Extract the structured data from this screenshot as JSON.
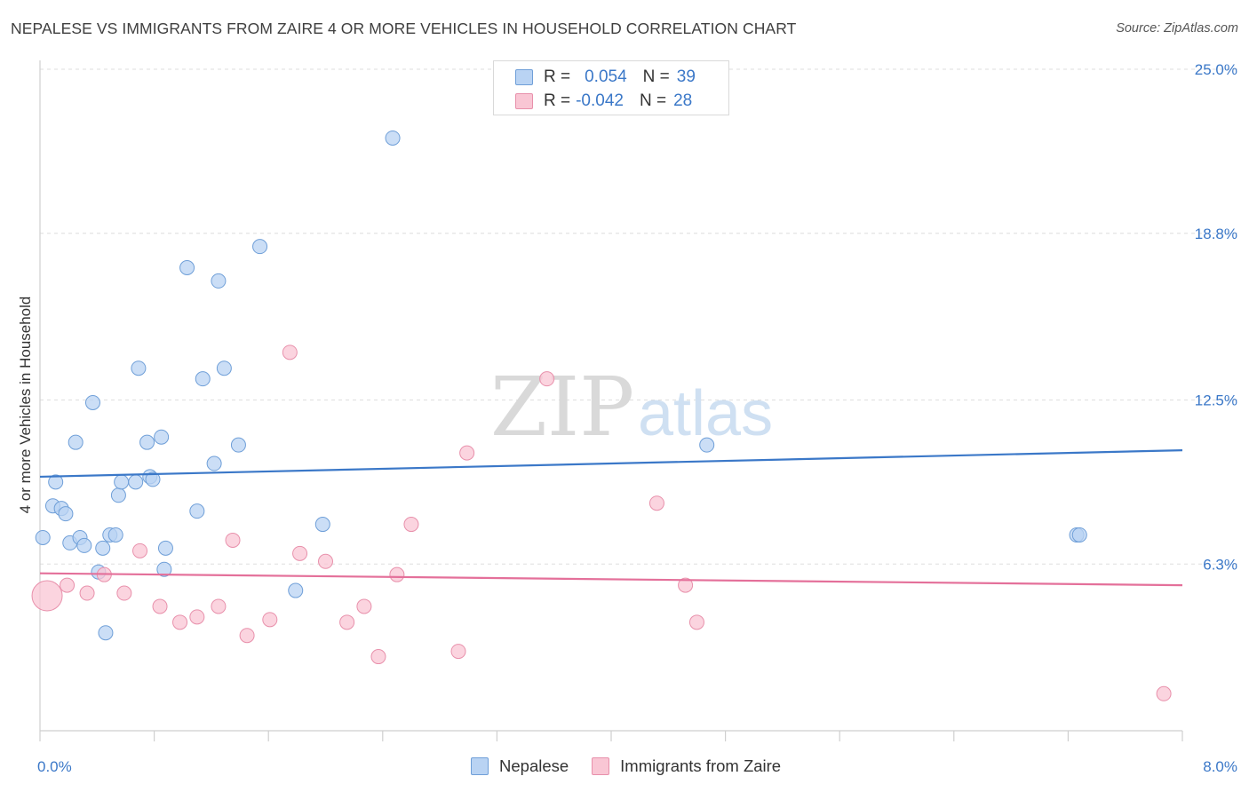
{
  "header": {
    "title": "NEPALESE VS IMMIGRANTS FROM ZAIRE 4 OR MORE VEHICLES IN HOUSEHOLD CORRELATION CHART",
    "source": "Source: ZipAtlas.com"
  },
  "watermark": {
    "zip": "ZIP",
    "atlas": "atlas"
  },
  "legend": {
    "rows": [
      {
        "r_label": "R =",
        "r_value": "0.054",
        "n_label": "N =",
        "n_value": "39",
        "fill": "#b9d3f3",
        "stroke": "#6f9fd8"
      },
      {
        "r_label": "R =",
        "r_value": "-0.042",
        "n_label": "N =",
        "n_value": "28",
        "fill": "#f9c6d4",
        "stroke": "#e890ab"
      }
    ]
  },
  "bottom_legend": [
    {
      "label": "Nepalese",
      "fill": "#b9d3f3",
      "stroke": "#6f9fd8"
    },
    {
      "label": "Immigrants from Zaire",
      "fill": "#f9c6d4",
      "stroke": "#e890ab"
    }
  ],
  "chart_data": {
    "type": "scatter",
    "title": "NEPALESE VS IMMIGRANTS FROM ZAIRE 4 OR MORE VEHICLES IN HOUSEHOLD CORRELATION CHART",
    "xlabel": "",
    "ylabel": "4 or more Vehicles in Household",
    "xlim": [
      0.0,
      8.0
    ],
    "ylim": [
      0.0,
      25.0
    ],
    "x_tick_labels": [
      {
        "value": 0.0,
        "label": "0.0%"
      },
      {
        "value": 8.0,
        "label": "8.0%"
      }
    ],
    "y_tick_labels": [
      {
        "value": 6.3,
        "label": "6.3%"
      },
      {
        "value": 12.5,
        "label": "12.5%"
      },
      {
        "value": 18.8,
        "label": "18.8%"
      },
      {
        "value": 25.0,
        "label": "25.0%"
      }
    ],
    "grid": true,
    "legend_position": "top-center",
    "series": [
      {
        "name": "Nepalese",
        "color": "#3b78c8",
        "fill": "#b9d3f3",
        "stroke": "#6f9fd8",
        "trend": {
          "x": [
            0.0,
            8.0
          ],
          "y": [
            9.6,
            10.6
          ]
        },
        "points": [
          {
            "x": 0.02,
            "y": 7.3
          },
          {
            "x": 0.09,
            "y": 8.5
          },
          {
            "x": 0.11,
            "y": 9.4
          },
          {
            "x": 0.15,
            "y": 8.4
          },
          {
            "x": 0.18,
            "y": 8.2
          },
          {
            "x": 0.21,
            "y": 7.1
          },
          {
            "x": 0.25,
            "y": 10.9
          },
          {
            "x": 0.28,
            "y": 7.3
          },
          {
            "x": 0.31,
            "y": 7.0
          },
          {
            "x": 0.37,
            "y": 12.4
          },
          {
            "x": 0.41,
            "y": 6.0
          },
          {
            "x": 0.44,
            "y": 6.9
          },
          {
            "x": 0.46,
            "y": 3.7
          },
          {
            "x": 0.49,
            "y": 7.4
          },
          {
            "x": 0.53,
            "y": 7.4
          },
          {
            "x": 0.55,
            "y": 8.9
          },
          {
            "x": 0.57,
            "y": 9.4
          },
          {
            "x": 0.67,
            "y": 9.4
          },
          {
            "x": 0.69,
            "y": 13.7
          },
          {
            "x": 0.75,
            "y": 10.9
          },
          {
            "x": 0.77,
            "y": 9.6
          },
          {
            "x": 0.79,
            "y": 9.5
          },
          {
            "x": 0.85,
            "y": 11.1
          },
          {
            "x": 0.87,
            "y": 6.1
          },
          {
            "x": 0.88,
            "y": 6.9
          },
          {
            "x": 1.03,
            "y": 17.5
          },
          {
            "x": 1.1,
            "y": 8.3
          },
          {
            "x": 1.14,
            "y": 13.3
          },
          {
            "x": 1.22,
            "y": 10.1
          },
          {
            "x": 1.25,
            "y": 17.0
          },
          {
            "x": 1.29,
            "y": 13.7
          },
          {
            "x": 1.39,
            "y": 10.8
          },
          {
            "x": 1.54,
            "y": 18.3
          },
          {
            "x": 1.79,
            "y": 5.3
          },
          {
            "x": 1.98,
            "y": 7.8
          },
          {
            "x": 2.47,
            "y": 22.4
          },
          {
            "x": 4.67,
            "y": 10.8
          },
          {
            "x": 7.26,
            "y": 7.4
          },
          {
            "x": 7.28,
            "y": 7.4
          }
        ]
      },
      {
        "name": "Immigrants from Zaire",
        "color": "#e4709a",
        "fill": "#f9c6d4",
        "stroke": "#e890ab",
        "trend": {
          "x": [
            0.0,
            8.0
          ],
          "y": [
            5.95,
            5.5
          ]
        },
        "points": [
          {
            "x": 0.05,
            "y": 5.1,
            "big": true
          },
          {
            "x": 0.19,
            "y": 5.5
          },
          {
            "x": 0.33,
            "y": 5.2
          },
          {
            "x": 0.45,
            "y": 5.9
          },
          {
            "x": 0.59,
            "y": 5.2
          },
          {
            "x": 0.7,
            "y": 6.8
          },
          {
            "x": 0.84,
            "y": 4.7
          },
          {
            "x": 0.98,
            "y": 4.1
          },
          {
            "x": 1.1,
            "y": 4.3
          },
          {
            "x": 1.25,
            "y": 4.7
          },
          {
            "x": 1.35,
            "y": 7.2
          },
          {
            "x": 1.45,
            "y": 3.6
          },
          {
            "x": 1.61,
            "y": 4.2
          },
          {
            "x": 1.75,
            "y": 14.3
          },
          {
            "x": 1.82,
            "y": 6.7
          },
          {
            "x": 2.0,
            "y": 6.4
          },
          {
            "x": 2.15,
            "y": 4.1
          },
          {
            "x": 2.27,
            "y": 4.7
          },
          {
            "x": 2.37,
            "y": 2.8
          },
          {
            "x": 2.5,
            "y": 5.9
          },
          {
            "x": 2.6,
            "y": 7.8
          },
          {
            "x": 2.93,
            "y": 3.0
          },
          {
            "x": 2.99,
            "y": 10.5
          },
          {
            "x": 3.55,
            "y": 13.3
          },
          {
            "x": 4.32,
            "y": 8.6
          },
          {
            "x": 4.52,
            "y": 5.5
          },
          {
            "x": 4.6,
            "y": 4.1
          },
          {
            "x": 7.87,
            "y": 1.4
          }
        ]
      }
    ]
  }
}
